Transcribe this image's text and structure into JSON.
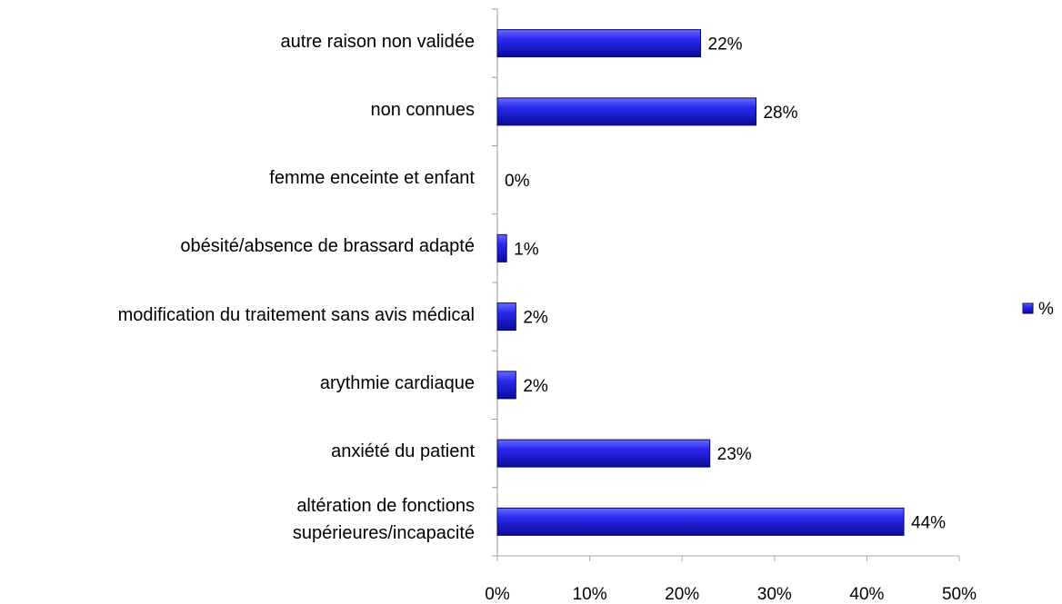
{
  "chart_data": {
    "type": "bar",
    "orientation": "horizontal",
    "categories": [
      "autre raison non validée",
      "non connues",
      "femme enceinte et enfant",
      "obésité/absence de brassard adapté",
      "modification du traitement sans avis médical",
      "arythmie cardiaque",
      "anxiété du patient",
      "altération de fonctions\nsupérieures/incapacité"
    ],
    "series": [
      {
        "name": "%",
        "color": "#1010e0",
        "values": [
          22,
          28,
          0,
          1,
          2,
          2,
          23,
          44
        ],
        "value_labels": [
          "22%",
          "28%",
          "0%",
          "1%",
          "2%",
          "2%",
          "23%",
          "44%"
        ]
      }
    ],
    "xlim": [
      0,
      50
    ],
    "xticks": [
      {
        "value": 0,
        "label": "0%"
      },
      {
        "value": 10,
        "label": "10%"
      },
      {
        "value": 20,
        "label": "20%"
      },
      {
        "value": 30,
        "label": "30%"
      },
      {
        "value": 40,
        "label": "40%"
      },
      {
        "value": 50,
        "label": "50%"
      }
    ],
    "legend": "right"
  }
}
